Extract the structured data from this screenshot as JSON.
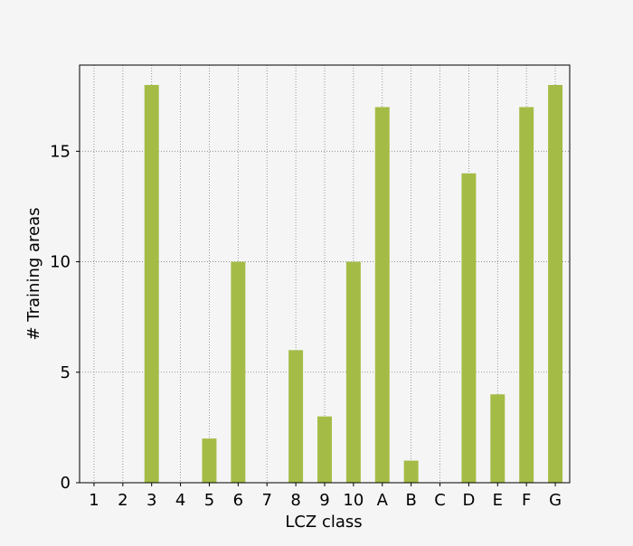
{
  "chart_data": {
    "type": "bar",
    "title": "",
    "xlabel": "LCZ class",
    "ylabel": "# Training areas",
    "categories": [
      "1",
      "2",
      "3",
      "4",
      "5",
      "6",
      "7",
      "8",
      "9",
      "10",
      "A",
      "B",
      "C",
      "D",
      "E",
      "F",
      "G"
    ],
    "values": [
      0,
      0,
      18,
      0,
      2,
      10,
      0,
      6,
      3,
      10,
      17,
      1,
      0,
      14,
      4,
      17,
      18
    ],
    "ylim": [
      0,
      18.9
    ],
    "yticks": [
      0,
      5,
      10,
      15
    ],
    "grid": true,
    "legend": "none",
    "bar_color": "#a4bc46",
    "background_color": "#f5f5f5",
    "grid_color": "#808080"
  }
}
